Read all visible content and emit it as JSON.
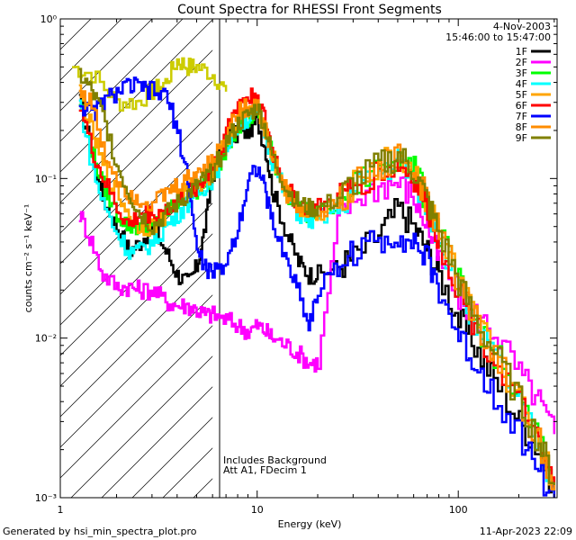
{
  "chart_data": {
    "type": "line",
    "step": true,
    "title": "Count Spectra for RHESSI Front Segments",
    "xlabel": "Energy (keV)",
    "ylabel": "counts cm⁻² s⁻¹ keV⁻¹",
    "xscale": "log",
    "yscale": "log",
    "xlim": [
      1.05,
      310
    ],
    "ylim": [
      0.001,
      1.0
    ],
    "x_ticks": [
      {
        "value": 1,
        "label": "1"
      },
      {
        "value": 10,
        "label": "10"
      },
      {
        "value": 100,
        "label": "100"
      }
    ],
    "y_ticks": [
      {
        "value": 0.001,
        "label": "10⁻³"
      },
      {
        "value": 0.01,
        "label": "10⁻²"
      },
      {
        "value": 0.1,
        "label": "10⁻¹"
      },
      {
        "value": 1,
        "label": "10⁰"
      }
    ],
    "attenuator_hatch": {
      "x_from": 1.05,
      "x_to": 6.0
    },
    "annotation_date": "4-Nov-2003",
    "annotation_time": "15:46:00 to 15:47:00",
    "annotation_bg": "Includes Background",
    "annotation_att": "Att A1, FDecim  1",
    "legend_position": "top-right",
    "x": [
      3,
      3.5,
      4,
      4.5,
      5,
      5.5,
      6,
      7,
      8,
      9,
      10,
      11,
      12,
      14,
      16,
      18,
      20,
      25,
      30,
      40,
      50,
      60,
      70,
      80,
      100,
      120,
      150,
      200,
      250,
      300
    ],
    "series": [
      {
        "name": "1F",
        "color": "#000000",
        "values": [
          0.05,
          0.035,
          0.025,
          0.022,
          0.028,
          0.05,
          0.11,
          0.18,
          0.19,
          0.2,
          0.23,
          0.15,
          0.08,
          0.045,
          0.03,
          0.025,
          0.025,
          0.028,
          0.032,
          0.045,
          0.065,
          0.05,
          0.035,
          0.025,
          0.013,
          0.009,
          0.0055,
          0.003,
          0.002,
          0.0011
        ]
      },
      {
        "name": "2F",
        "color": "#ff00ff",
        "values": [
          0.02,
          0.017,
          0.016,
          0.016,
          0.015,
          0.014,
          0.014,
          0.013,
          0.012,
          0.011,
          0.012,
          0.011,
          0.01,
          0.009,
          0.008,
          0.007,
          0.007,
          0.055,
          0.075,
          0.09,
          0.095,
          0.075,
          0.05,
          0.03,
          0.018,
          0.014,
          0.011,
          0.006,
          0.004,
          0.0025
        ]
      },
      {
        "name": "3F",
        "color": "#00ff00",
        "values": [
          0.05,
          0.06,
          0.07,
          0.08,
          0.085,
          0.09,
          0.1,
          0.16,
          0.22,
          0.23,
          0.27,
          0.2,
          0.13,
          0.08,
          0.065,
          0.06,
          0.06,
          0.07,
          0.09,
          0.12,
          0.14,
          0.11,
          0.07,
          0.045,
          0.022,
          0.013,
          0.008,
          0.004,
          0.0022,
          0.0012
        ]
      },
      {
        "name": "4F",
        "color": "#00ffff",
        "values": [
          0.04,
          0.05,
          0.06,
          0.07,
          0.08,
          0.09,
          0.1,
          0.16,
          0.22,
          0.24,
          0.26,
          0.19,
          0.12,
          0.075,
          0.06,
          0.055,
          0.055,
          0.065,
          0.085,
          0.11,
          0.13,
          0.1,
          0.065,
          0.042,
          0.02,
          0.012,
          0.0075,
          0.0038,
          0.002,
          0.0011
        ]
      },
      {
        "name": "5F",
        "color": "#ffa500",
        "values": [
          0.05,
          0.06,
          0.075,
          0.085,
          0.09,
          0.1,
          0.11,
          0.18,
          0.24,
          0.26,
          0.28,
          0.2,
          0.13,
          0.08,
          0.065,
          0.06,
          0.06,
          0.07,
          0.09,
          0.12,
          0.14,
          0.11,
          0.07,
          0.045,
          0.022,
          0.013,
          0.008,
          0.004,
          0.0022,
          0.0012
        ]
      },
      {
        "name": "6F",
        "color": "#ff0000",
        "values": [
          0.06,
          0.065,
          0.07,
          0.08,
          0.09,
          0.1,
          0.12,
          0.2,
          0.3,
          0.32,
          0.33,
          0.22,
          0.14,
          0.085,
          0.07,
          0.065,
          0.065,
          0.075,
          0.09,
          0.11,
          0.12,
          0.1,
          0.065,
          0.04,
          0.02,
          0.012,
          0.0075,
          0.0038,
          0.002,
          0.0011
        ]
      },
      {
        "name": "7F",
        "color": "#0000ff",
        "values": [
          0.35,
          0.33,
          0.2,
          0.1,
          0.035,
          0.028,
          0.025,
          0.03,
          0.05,
          0.1,
          0.12,
          0.08,
          0.05,
          0.03,
          0.02,
          0.012,
          0.02,
          0.028,
          0.035,
          0.04,
          0.045,
          0.04,
          0.03,
          0.02,
          0.01,
          0.007,
          0.0045,
          0.0025,
          0.0015,
          0.0009
        ]
      },
      {
        "name": "8F",
        "color": "#ff8c00",
        "values": [
          0.07,
          0.08,
          0.09,
          0.1,
          0.11,
          0.12,
          0.13,
          0.2,
          0.26,
          0.28,
          0.3,
          0.2,
          0.13,
          0.08,
          0.065,
          0.06,
          0.06,
          0.07,
          0.09,
          0.12,
          0.14,
          0.11,
          0.07,
          0.045,
          0.022,
          0.013,
          0.008,
          0.004,
          0.0022,
          0.0012
        ]
      },
      {
        "name": "9F",
        "color": "#808000",
        "values": [
          0.05,
          0.06,
          0.07,
          0.08,
          0.09,
          0.1,
          0.11,
          0.17,
          0.22,
          0.25,
          0.28,
          0.2,
          0.13,
          0.085,
          0.07,
          0.065,
          0.065,
          0.075,
          0.095,
          0.12,
          0.14,
          0.11,
          0.07,
          0.045,
          0.022,
          0.013,
          0.008,
          0.004,
          0.0022,
          0.0012
        ]
      }
    ],
    "extra_low": {
      "x": [
        1.3,
        1.5,
        1.7,
        2.0,
        2.3,
        2.6
      ],
      "values": {
        "1F": [
          0.3,
          0.15,
          0.075,
          0.05,
          0.035,
          0.04
        ],
        "2F": [
          0.06,
          0.04,
          0.025,
          0.021,
          0.021,
          0.02
        ],
        "3F": [
          0.3,
          0.15,
          0.09,
          0.06,
          0.05,
          0.05
        ],
        "4F": [
          0.3,
          0.12,
          0.07,
          0.045,
          0.035,
          0.035
        ],
        "5F": [
          0.35,
          0.2,
          0.12,
          0.08,
          0.06,
          0.05
        ],
        "6F": [
          0.3,
          0.15,
          0.1,
          0.065,
          0.05,
          0.06
        ],
        "7F": [
          0.3,
          0.25,
          0.3,
          0.35,
          0.38,
          0.37
        ],
        "8F": [
          0.35,
          0.3,
          0.15,
          0.1,
          0.08,
          0.075
        ],
        "9F": [
          0.45,
          0.35,
          0.25,
          0.12,
          0.08,
          0.06
        ]
      },
      "yellow_top": {
        "x": [
          1.2,
          1.5,
          2.0,
          2.5,
          3.0,
          3.5,
          4.0,
          4.5,
          5.0,
          6.0,
          7.0
        ],
        "values": [
          0.5,
          0.45,
          0.3,
          0.3,
          0.35,
          0.4,
          0.55,
          0.5,
          0.5,
          0.45,
          0.35
        ]
      }
    }
  },
  "footer": {
    "left": "Generated by hsi_min_spectra_plot.pro",
    "right": "11-Apr-2023 22:09"
  }
}
